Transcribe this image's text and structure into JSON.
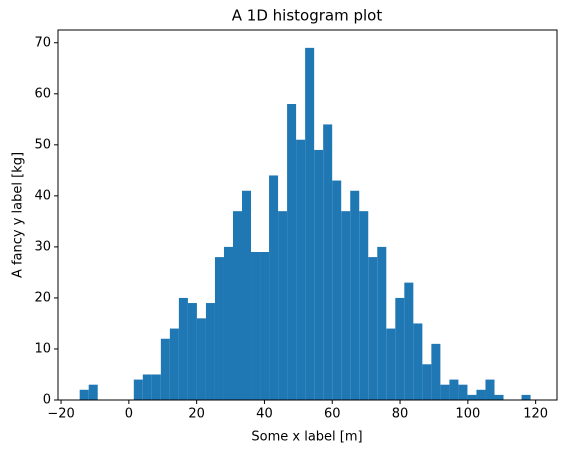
{
  "chart_data": {
    "type": "histogram",
    "title": "A 1D histogram plot",
    "x_label": "Some x label [m]",
    "y_label": "A fancy y label [kg]",
    "color": "#1f77b4",
    "bins": [
      -14.5,
      -11.84,
      -9.18,
      -6.52,
      -3.86,
      -1.2,
      1.46,
      4.12,
      6.78,
      9.44,
      12.1,
      14.76,
      17.42,
      20.08,
      22.74,
      25.4,
      28.06,
      30.72,
      33.38,
      36.04,
      38.7,
      41.36,
      44.02,
      46.68,
      49.34,
      52.0,
      54.66,
      57.32,
      59.98,
      62.64,
      65.3,
      67.96,
      70.62,
      73.28,
      75.94,
      78.6,
      81.26,
      83.92,
      86.58,
      89.24,
      91.9,
      94.56,
      97.22,
      99.88,
      102.54,
      105.2,
      107.86,
      110.52,
      113.18,
      115.84,
      118.5
    ],
    "values": [
      2,
      3,
      0,
      0,
      0,
      0,
      4,
      5,
      5,
      12,
      14,
      20,
      19,
      16,
      19,
      28,
      30,
      37,
      41,
      29,
      29,
      44,
      37,
      58,
      51,
      69,
      49,
      54,
      43,
      37,
      41,
      37,
      28,
      30,
      14,
      20,
      23,
      15,
      7,
      11,
      3,
      4,
      3,
      1,
      2,
      4,
      1,
      0,
      0,
      1
    ],
    "xlim": [
      -20.9,
      126.3
    ],
    "ylim": [
      0,
      72.5
    ],
    "xticks": [
      {
        "value": -20,
        "label": "−20"
      },
      0,
      20,
      40,
      60,
      80,
      100,
      120
    ],
    "yticks": [
      0,
      10,
      20,
      30,
      40,
      50,
      60,
      70
    ]
  }
}
